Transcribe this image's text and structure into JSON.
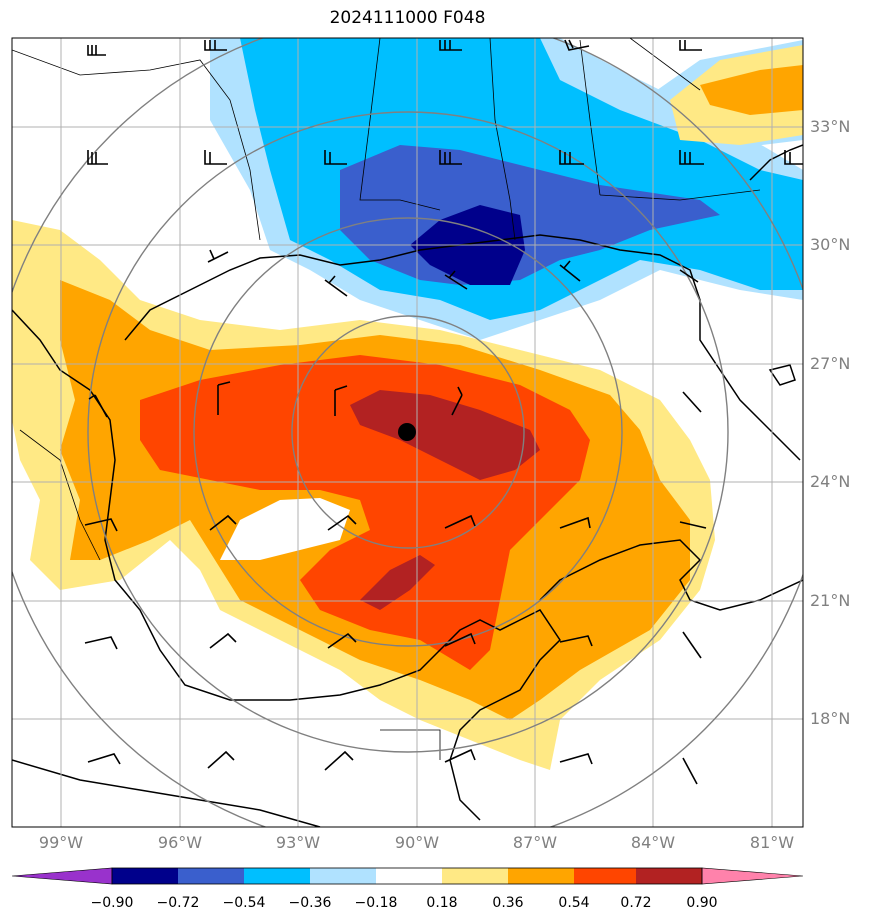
{
  "title": "2024111000 F048",
  "lat_labels": [
    "33°N",
    "30°N",
    "27°N",
    "24°N",
    "21°N",
    "18°N"
  ],
  "lon_labels": [
    "99°W",
    "96°W",
    "93°W",
    "90°W",
    "87°W",
    "84°W",
    "81°W"
  ],
  "colorbar": {
    "levels": [
      "−0.90",
      "−0.72",
      "−0.54",
      "−0.36",
      "−0.18",
      "0.18",
      "0.36",
      "0.54",
      "0.72",
      "0.90"
    ],
    "colors": [
      "#9932cc",
      "#00008b",
      "#3a5fcd",
      "#00bfff",
      "#b0e2ff",
      "#ffffff",
      "#ffe985",
      "#ffa500",
      "#ff4500",
      "#b22222",
      "#ff82ab"
    ]
  },
  "fill_colors": {
    "strong_neg": "#00008b",
    "mod_neg": "#3a5fcd",
    "neg": "#00bfff",
    "weak_neg": "#b0e2ff",
    "weak_pos": "#ffe985",
    "pos": "#ffa500",
    "mod_pos": "#ff4500",
    "strong_pos": "#b22222"
  },
  "center_marker": "storm-center-dot"
}
